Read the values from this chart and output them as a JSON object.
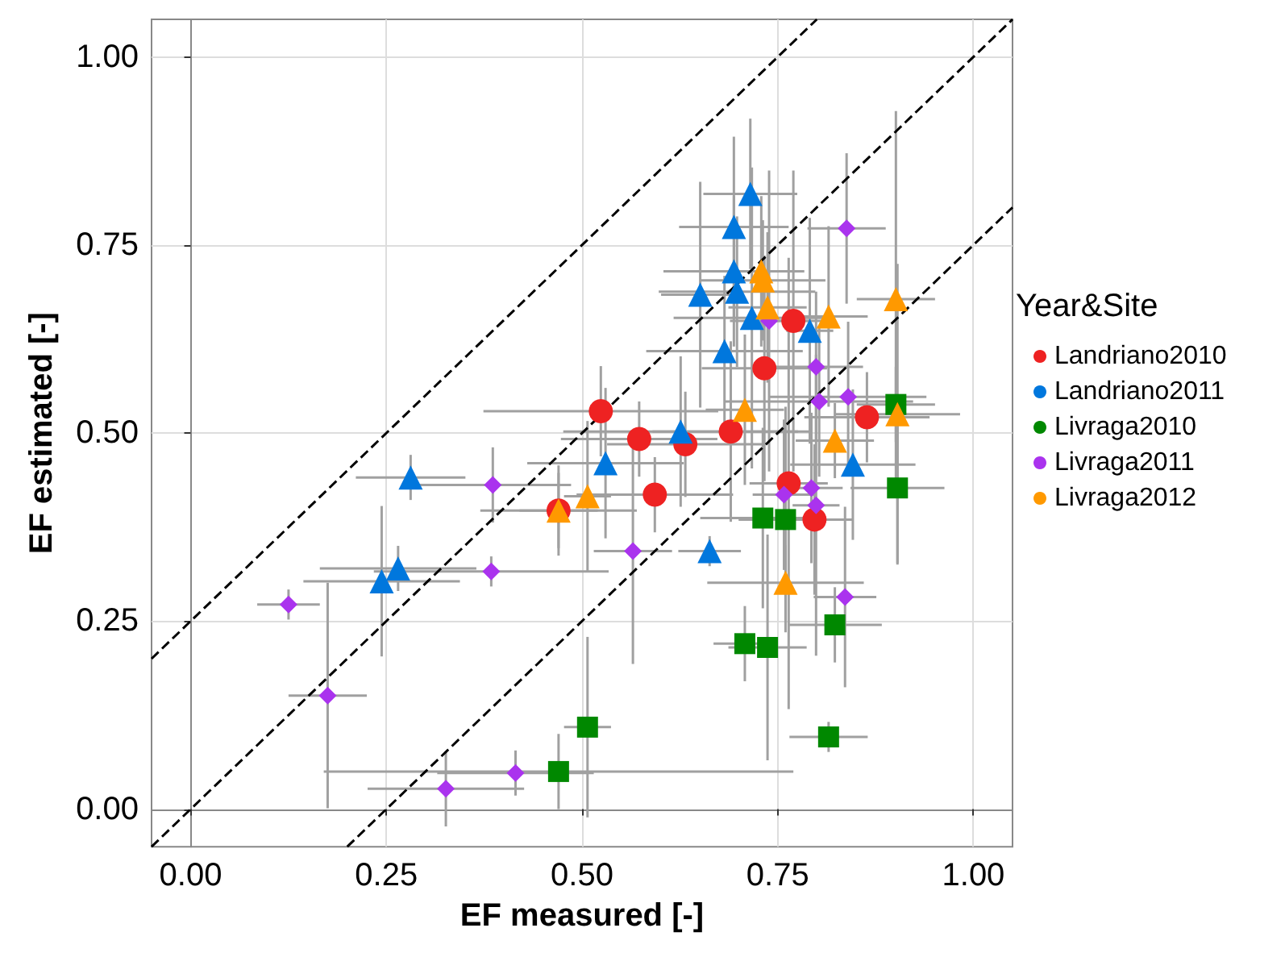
{
  "chart_data": {
    "type": "scatter",
    "xlabel": "EF measured [-]",
    "ylabel": "EF estimated [-]",
    "legend_title": "Year&Site",
    "xlim": [
      -0.05,
      1.05
    ],
    "ylim": [
      -0.05,
      1.05
    ],
    "xticks": [
      {
        "value": 0,
        "label": "0.00"
      },
      {
        "value": 0.25,
        "label": "0.25"
      },
      {
        "value": 0.5,
        "label": "0.50"
      },
      {
        "value": 0.75,
        "label": "0.75"
      },
      {
        "value": 1,
        "label": "1.00"
      }
    ],
    "yticks": [
      {
        "value": 0,
        "label": "0.00"
      },
      {
        "value": 0.25,
        "label": "0.25"
      },
      {
        "value": 0.5,
        "label": "0.50"
      },
      {
        "value": 0.75,
        "label": "0.75"
      },
      {
        "value": 1,
        "label": "1.00"
      }
    ],
    "grid": true,
    "legend": "right",
    "series": [
      {
        "name": "Landriano2010",
        "color": "#ee2222",
        "marker": "circle",
        "x": [
          0.524,
          0.573,
          0.632,
          0.69,
          0.733,
          0.77,
          0.864,
          0.764,
          0.797,
          0.593,
          0.47
        ],
        "values": [
          0.529,
          0.492,
          0.485,
          0.502,
          0.586,
          0.649,
          0.521,
          0.433,
          0.385,
          0.418,
          0.397
        ],
        "xerrors": [
          0.15,
          0.1,
          0.1,
          0.1,
          0.08,
          0.05,
          0.08,
          0.05,
          0.05,
          0.1,
          0.1
        ],
        "errors": [
          0.06,
          0.05,
          0.07,
          0.12,
          0.15,
          0.2,
          0.06,
          0.3,
          0.1,
          0.05,
          0.05
        ]
      },
      {
        "name": "Landriano2011",
        "color": "#0077dd",
        "marker": "triangle",
        "x": [
          0.715,
          0.694,
          0.694,
          0.698,
          0.651,
          0.717,
          0.791,
          0.682,
          0.626,
          0.53,
          0.846,
          0.663,
          0.281,
          0.265,
          0.244
        ],
        "values": [
          0.818,
          0.774,
          0.715,
          0.688,
          0.684,
          0.653,
          0.636,
          0.609,
          0.502,
          0.46,
          0.458,
          0.343,
          0.441,
          0.32,
          0.303
        ],
        "xerrors": [
          0.06,
          0.07,
          0.09,
          0.1,
          0.05,
          0.1,
          0.03,
          0.1,
          0.15,
          0.1,
          0.08,
          0.04,
          0.07,
          0.1,
          0.1
        ],
        "errors": [
          0.1,
          0.12,
          0.1,
          0.1,
          0.15,
          0.2,
          0.15,
          0.1,
          0.1,
          0.1,
          0.1,
          0.02,
          0.03,
          0.03,
          0.1
        ]
      },
      {
        "name": "Livraga2010",
        "color": "#008800",
        "marker": "square",
        "x": [
          0.901,
          0.903,
          0.731,
          0.76,
          0.823,
          0.708,
          0.737,
          0.507,
          0.47,
          0.815
        ],
        "values": [
          0.538,
          0.427,
          0.387,
          0.385,
          0.245,
          0.22,
          0.215,
          0.109,
          0.05,
          0.096
        ],
        "xerrors": [
          0.05,
          0.06,
          0.08,
          0.06,
          0.06,
          0.04,
          0.05,
          0.03,
          0.3,
          0.05
        ],
        "errors": [
          0.05,
          0.1,
          0.12,
          0.15,
          0.05,
          0.05,
          0.15,
          0.12,
          0.05,
          0.02
        ]
      },
      {
        "name": "Livraga2011",
        "color": "#aa33ee",
        "marker": "diamond",
        "x": [
          0.838,
          0.739,
          0.799,
          0.803,
          0.84,
          0.758,
          0.793,
          0.799,
          0.565,
          0.836,
          0.386,
          0.384,
          0.125,
          0.175,
          0.415,
          0.326
        ],
        "values": [
          0.772,
          0.649,
          0.588,
          0.542,
          0.548,
          0.418,
          0.427,
          0.404,
          0.343,
          0.282,
          0.431,
          0.316,
          0.272,
          0.151,
          0.048,
          0.027
        ],
        "xerrors": [
          0.05,
          0.05,
          0.06,
          0.12,
          0.1,
          0.04,
          0.04,
          0.03,
          0.05,
          0.04,
          0.1,
          0.15,
          0.04,
          0.05,
          0.1,
          0.1
        ],
        "errors": [
          0.1,
          0.2,
          0.1,
          0.1,
          0.1,
          0.1,
          0.1,
          0.2,
          0.15,
          0.12,
          0.05,
          0.02,
          0.02,
          0.15,
          0.03,
          0.05
        ]
      },
      {
        "name": "Livraga2012",
        "color": "#ff9900",
        "marker": "triangle",
        "x": [
          0.729,
          0.731,
          0.737,
          0.815,
          0.901,
          0.903,
          0.708,
          0.823,
          0.507,
          0.47,
          0.76
        ],
        "values": [
          0.715,
          0.703,
          0.667,
          0.655,
          0.678,
          0.525,
          0.531,
          0.49,
          0.416,
          0.397,
          0.301
        ],
        "xerrors": [
          0.04,
          0.08,
          0.05,
          0.05,
          0.05,
          0.08,
          0.05,
          0.05,
          0.03,
          0.05,
          0.1
        ],
        "errors": [
          0.1,
          0.08,
          0.1,
          0.12,
          0.25,
          0.2,
          0.1,
          0.05,
          0.1,
          0.06,
          0.05
        ]
      },
      {
        "type": "line",
        "color": "#000000",
        "line_style": "dashed",
        "marker": "none",
        "x": [
          -0.05,
          0.8
        ],
        "values": [
          0.2,
          1.05
        ]
      },
      {
        "type": "line",
        "color": "#000000",
        "line_style": "dashed",
        "marker": "none",
        "x": [
          -0.05,
          1.05
        ],
        "values": [
          -0.05,
          1.05
        ]
      },
      {
        "type": "line",
        "color": "#000000",
        "line_style": "dashed",
        "marker": "none",
        "x": [
          0.2,
          1.05
        ],
        "values": [
          -0.05,
          0.8
        ]
      }
    ]
  }
}
